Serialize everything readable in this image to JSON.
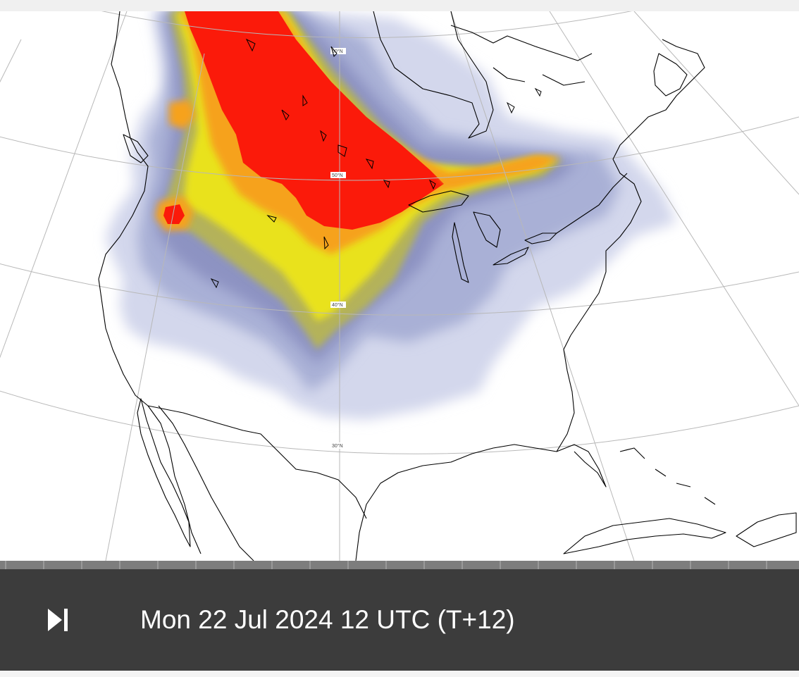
{
  "map": {
    "latitude_labels": [
      "60°N",
      "50°N",
      "40°N",
      "30°N"
    ],
    "plume_colors": {
      "lightest": "#d3d7ec",
      "light": "#a9b0d6",
      "medium": "#8d93c2",
      "olive": "#b4b25a",
      "yellow": "#e9e21e",
      "orange": "#f6a21a",
      "red": "#fb1a0a"
    },
    "coastline_color": "#000000",
    "graticule_color": "#b8b8b8"
  },
  "controls": {
    "step_end_icon": "skip-to-end-icon",
    "valid_time": "Mon 22 Jul 2024 12 UTC (T+12)"
  },
  "timeline": {
    "tick_count": 21
  }
}
